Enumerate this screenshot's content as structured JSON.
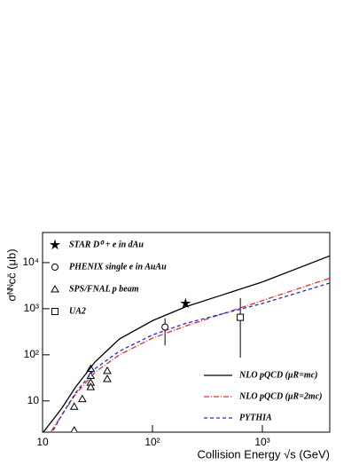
{
  "chart_data": {
    "type": "line",
    "xlabel": "Collision Energy √s (GeV)",
    "ylabel": "σᴺᴺcc̄ (μb)",
    "log_x": true,
    "log_y": true,
    "xlim": [
      10,
      4100
    ],
    "ylim": [
      2.1,
      45000
    ],
    "xticks": [
      {
        "value": 10,
        "label": "10"
      },
      {
        "value": 100,
        "label": "10²"
      },
      {
        "value": 1000,
        "label": "10³"
      }
    ],
    "yticks": [
      {
        "value": 10,
        "label": "10"
      },
      {
        "value": 100,
        "label": "10²"
      },
      {
        "value": 1000,
        "label": "10³"
      },
      {
        "value": 10000,
        "label": "10⁴"
      }
    ],
    "series": [
      {
        "name": "STAR D⁰ + e in dAu",
        "kind": "points",
        "marker": "star",
        "color": "#000000",
        "x": [
          200
        ],
        "values": [
          1300
        ],
        "y_low": [
          1100
        ],
        "y_high": [
          1500
        ]
      },
      {
        "name": "PHENIX single e in AuAu",
        "kind": "points",
        "marker": "circle",
        "color": "#000000",
        "x": [
          130
        ],
        "values": [
          400
        ],
        "y_low": [
          160
        ],
        "y_high": [
          620
        ]
      },
      {
        "name": "SPS/FNAL p beam",
        "kind": "points",
        "marker": "triangle",
        "color": "#000000",
        "x": [
          19.4,
          19.4,
          23,
          27.4,
          27.4,
          27.4,
          27.4,
          38.8,
          38.8
        ],
        "values": [
          2.3,
          7.5,
          11,
          50,
          35,
          25,
          20,
          45,
          30
        ]
      },
      {
        "name": "UA2",
        "kind": "points",
        "marker": "square",
        "color": "#000000",
        "x": [
          630
        ],
        "values": [
          650
        ],
        "y_low": [
          87
        ],
        "y_high": [
          1700
        ]
      },
      {
        "name": "NLO pQCD (μR=mc)",
        "kind": "curve",
        "dash": "none",
        "color": "#000000",
        "x": [
          10,
          12,
          15,
          20,
          30,
          50,
          100,
          200,
          1000,
          4100
        ],
        "values": [
          2,
          3.5,
          7,
          20,
          70,
          220,
          550,
          1100,
          3800,
          14000
        ]
      },
      {
        "name": "NLO pQCD (μR=2mc)",
        "kind": "curve",
        "dash": "6 2 1 2",
        "color": "#e03030",
        "x": [
          12,
          15,
          20,
          30,
          50,
          100,
          200,
          1000,
          4100
        ],
        "values": [
          2.2,
          5,
          14,
          42,
          100,
          230,
          420,
          1500,
          4600
        ]
      },
      {
        "name": "PYTHIA",
        "kind": "curve",
        "dash": "4 3",
        "color": "#1a2ed8",
        "x": [
          12.5,
          15,
          20,
          30,
          50,
          100,
          200,
          1000,
          4100
        ],
        "values": [
          2.3,
          5,
          15,
          50,
          120,
          270,
          480,
          1300,
          3600
        ]
      }
    ]
  }
}
